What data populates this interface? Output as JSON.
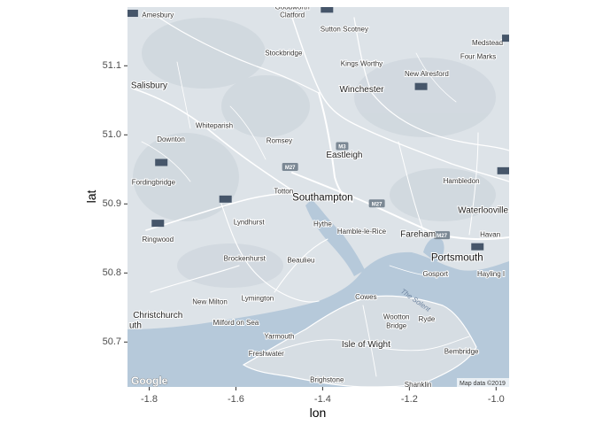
{
  "axes": {
    "x_title": "lon",
    "y_title": "lat",
    "x_ticks": [
      "-1.8",
      "-1.6",
      "-1.4",
      "-1.2",
      "-1.0"
    ],
    "y_ticks": [
      "51.1",
      "51.0",
      "50.9",
      "50.8",
      "50.7"
    ]
  },
  "extent": {
    "lon": [
      -1.85,
      -0.97
    ],
    "lat": [
      50.635,
      51.185
    ]
  },
  "ticks_data": {
    "x": [
      -1.8,
      -1.6,
      -1.4,
      -1.2,
      -1.0
    ],
    "y": [
      51.1,
      51.0,
      50.9,
      50.8,
      50.7
    ]
  },
  "places": [
    {
      "name": "Amesbury",
      "lon": -1.78,
      "lat": 51.17,
      "cls": "place"
    },
    {
      "name": "Goodworth",
      "lon": -1.47,
      "lat": 51.182,
      "cls": "place"
    },
    {
      "name": "Clatford",
      "lon": -1.47,
      "lat": 51.17,
      "cls": "place"
    },
    {
      "name": "Sutton Scotney",
      "lon": -1.35,
      "lat": 51.15,
      "cls": "place"
    },
    {
      "name": "Medstead",
      "lon": -1.02,
      "lat": 51.13,
      "cls": "place"
    },
    {
      "name": "Four Marks",
      "lon": -1.0,
      "lat": 51.11,
      "cls": "place"
    },
    {
      "name": "Stockbridge",
      "lon": -1.49,
      "lat": 51.115,
      "cls": "place"
    },
    {
      "name": "Kings Worthy",
      "lon": -1.31,
      "lat": 51.1,
      "cls": "place"
    },
    {
      "name": "New Alresford",
      "lon": -1.16,
      "lat": 51.085,
      "cls": "place"
    },
    {
      "name": "Salisbury",
      "lon": -1.8,
      "lat": 51.068,
      "cls": "place-major"
    },
    {
      "name": "Winchester",
      "lon": -1.31,
      "lat": 51.062,
      "cls": "place-major"
    },
    {
      "name": "Whiteparish",
      "lon": -1.65,
      "lat": 51.01,
      "cls": "place"
    },
    {
      "name": "Downton",
      "lon": -1.75,
      "lat": 50.99,
      "cls": "place"
    },
    {
      "name": "Romsey",
      "lon": -1.5,
      "lat": 50.988,
      "cls": "place"
    },
    {
      "name": "Eastleigh",
      "lon": -1.35,
      "lat": 50.967,
      "cls": "place-major"
    },
    {
      "name": "Fordingbridge",
      "lon": -1.79,
      "lat": 50.928,
      "cls": "place"
    },
    {
      "name": "Hambledon",
      "lon": -1.08,
      "lat": 50.93,
      "cls": "place"
    },
    {
      "name": "Totton",
      "lon": -1.49,
      "lat": 50.915,
      "cls": "place"
    },
    {
      "name": "Southampton",
      "lon": -1.4,
      "lat": 50.905,
      "cls": "place-city"
    },
    {
      "name": "Waterlooville",
      "lon": -1.03,
      "lat": 50.887,
      "cls": "place-major"
    },
    {
      "name": "Lyndhurst",
      "lon": -1.57,
      "lat": 50.87,
      "cls": "place"
    },
    {
      "name": "Hythe",
      "lon": -1.4,
      "lat": 50.868,
      "cls": "place"
    },
    {
      "name": "Hamble-le-Rice",
      "lon": -1.31,
      "lat": 50.857,
      "cls": "place"
    },
    {
      "name": "Fareham",
      "lon": -1.18,
      "lat": 50.852,
      "cls": "place-major"
    },
    {
      "name": "Havan",
      "lon": -0.99,
      "lat": 50.852,
      "cls": "place"
    },
    {
      "name": "Ringwood",
      "lon": -1.78,
      "lat": 50.845,
      "cls": "place"
    },
    {
      "name": "Portsmouth",
      "lon": -1.09,
      "lat": 50.818,
      "cls": "place-city"
    },
    {
      "name": "Brockenhurst",
      "lon": -1.58,
      "lat": 50.818,
      "cls": "place"
    },
    {
      "name": "Beaulieu",
      "lon": -1.45,
      "lat": 50.815,
      "cls": "place"
    },
    {
      "name": "Gosport",
      "lon": -1.14,
      "lat": 50.795,
      "cls": "place"
    },
    {
      "name": "Hayling I",
      "lon": -0.98,
      "lat": 50.795,
      "cls": "place"
    },
    {
      "name": "Lymington",
      "lon": -1.55,
      "lat": 50.76,
      "cls": "place"
    },
    {
      "name": "Cowes",
      "lon": -1.3,
      "lat": 50.762,
      "cls": "place"
    },
    {
      "name": "New Milton",
      "lon": -1.66,
      "lat": 50.755,
      "cls": "place"
    },
    {
      "name": "Christchurch",
      "lon": -1.78,
      "lat": 50.735,
      "cls": "place-major"
    },
    {
      "name": "Wootton",
      "lon": -1.23,
      "lat": 50.733,
      "cls": "place"
    },
    {
      "name": "Ryde",
      "lon": -1.16,
      "lat": 50.73,
      "cls": "place"
    },
    {
      "name": "Bridge",
      "lon": -1.23,
      "lat": 50.72,
      "cls": "place"
    },
    {
      "name": "Milford on Sea",
      "lon": -1.6,
      "lat": 50.725,
      "cls": "place"
    },
    {
      "name": "uth",
      "lon": -1.847,
      "lat": 50.72,
      "cls": "place-major"
    },
    {
      "name": "Yarmouth",
      "lon": -1.5,
      "lat": 50.705,
      "cls": "place"
    },
    {
      "name": "Isle of Wight",
      "lon": -1.3,
      "lat": 50.693,
      "cls": "place-major"
    },
    {
      "name": "Bembridge",
      "lon": -1.08,
      "lat": 50.683,
      "cls": "place"
    },
    {
      "name": "Freshwater",
      "lon": -1.53,
      "lat": 50.68,
      "cls": "place"
    },
    {
      "name": "Brighstone",
      "lon": -1.39,
      "lat": 50.642,
      "cls": "place"
    },
    {
      "name": "Shanklin",
      "lon": -1.18,
      "lat": 50.635,
      "cls": "place"
    }
  ],
  "water_label": "The Solent",
  "motorways": [
    {
      "label": "M3",
      "lon": -1.355,
      "lat": 50.983
    },
    {
      "label": "M27",
      "lon": -1.475,
      "lat": 50.953
    },
    {
      "label": "M27",
      "lon": -1.275,
      "lat": 50.9
    },
    {
      "label": "M27",
      "lon": -1.125,
      "lat": 50.854
    }
  ],
  "markers": [
    {
      "lon": -1.84,
      "lat": 51.176
    },
    {
      "lon": -1.39,
      "lat": 51.182
    },
    {
      "lon": -1.173,
      "lat": 51.07
    },
    {
      "lon": -1.772,
      "lat": 50.96
    },
    {
      "lon": -1.624,
      "lat": 50.907
    },
    {
      "lon": -1.78,
      "lat": 50.872
    },
    {
      "lon": -1.043,
      "lat": 50.838
    },
    {
      "lon": -0.983,
      "lat": 50.948
    },
    {
      "lon": -0.972,
      "lat": 51.14
    }
  ],
  "attribution": "Map data ©2019",
  "google_logo": "Google",
  "colors": {
    "land": "#dde3e8",
    "water": "#b6c9da",
    "marker": "#46566a",
    "shield": "#7b8894"
  }
}
